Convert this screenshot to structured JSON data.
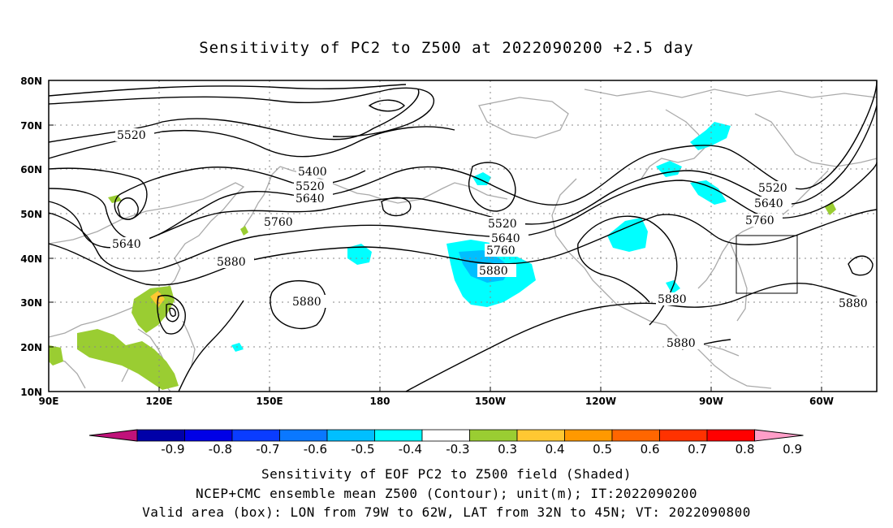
{
  "title": "Sensitivity of PC2 to Z500 at 2022090200 +2.5 day",
  "lat_labels": [
    "80N",
    "70N",
    "60N",
    "50N",
    "40N",
    "30N",
    "20N",
    "10N"
  ],
  "lon_labels": [
    "90E",
    "120E",
    "150E",
    "180",
    "150W",
    "120W",
    "90W",
    "60W"
  ],
  "contour_labels": [
    "5520",
    "5400",
    "5520",
    "5640",
    "5760",
    "5640",
    "5880",
    "5880",
    "5520",
    "5640",
    "5760",
    "5880",
    "5880",
    "5520",
    "5640",
    "5760",
    "5880",
    "5880"
  ],
  "colorbar": {
    "labels": [
      "-0.9",
      "-0.8",
      "-0.7",
      "-0.6",
      "-0.5",
      "-0.4",
      "-0.3",
      "0.3",
      "0.4",
      "0.5",
      "0.6",
      "0.7",
      "0.8",
      "0.9"
    ],
    "colors": [
      "#0000a8",
      "#0000e6",
      "#0a3cff",
      "#0a78ff",
      "#00bfff",
      "#00ffff",
      "#ffffff",
      "#9acd32",
      "#ffc832",
      "#ff9900",
      "#ff6600",
      "#ff3200",
      "#ff0000"
    ],
    "low_extend_color": "#c0127a",
    "high_extend_color": "#ff9ec8"
  },
  "box": {
    "label": "Valid area",
    "lon": "79W to 62W",
    "lat": "32N to 45N"
  },
  "captions": [
    "Sensitivity of EOF PC2 to Z500 field (Shaded)",
    "NCEP+CMC ensemble mean Z500 (Contour); unit(m); IT:2022090200",
    "Valid area (box): LON from 79W to 62W, LAT from 32N to 45N; VT: 2022090800"
  ],
  "colors": {
    "land": "#aaaaaa",
    "grid": "#888888",
    "contour": "#000000"
  }
}
